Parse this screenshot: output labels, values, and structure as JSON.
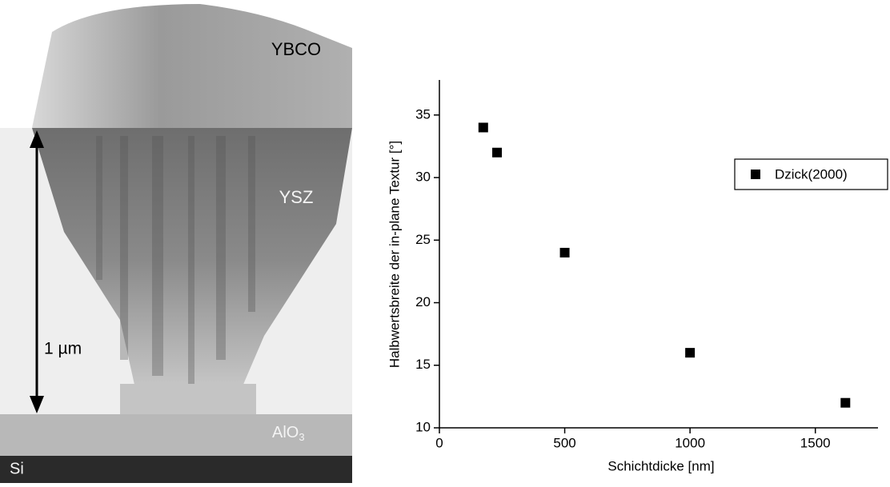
{
  "image": {
    "labels": {
      "ybco": "YBCO",
      "ysz": "YSZ",
      "scale": "1 µm",
      "buffer": "AlO",
      "buffer_sub": "3",
      "substrate": "Si"
    }
  },
  "chart_data": {
    "type": "scatter",
    "x_label": "Schichtdicke [nm]",
    "y_label": "Halbwertsbreite der in-plane Textur [°]",
    "series": [
      {
        "name": "Dzick(2000)",
        "color": "#000000",
        "x": [
          175,
          230,
          500,
          1000,
          1620
        ],
        "values": [
          34,
          32,
          24,
          16,
          12
        ]
      }
    ],
    "xlim": [
      0,
      1750
    ],
    "ylim": [
      10,
      37.8
    ],
    "xticks": [
      0,
      500,
      1000,
      1500
    ],
    "yticks": [
      10,
      15,
      20,
      25,
      30,
      35
    ]
  }
}
